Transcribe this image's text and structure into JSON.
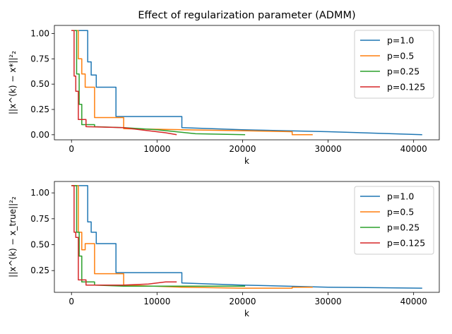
{
  "chart_data": [
    {
      "type": "line",
      "title": "Effect of regularization parameter (ADMM)",
      "xlabel": "k",
      "ylabel": "||x^(k) − x*||²₂",
      "xlim": [
        -2000,
        43000
      ],
      "ylim": [
        -0.05,
        1.08
      ],
      "xticks": [
        0,
        10000,
        20000,
        30000,
        40000
      ],
      "xtick_labels": [
        "0",
        "10000",
        "20000",
        "30000",
        "40000"
      ],
      "yticks": [
        0.0,
        0.25,
        0.5,
        0.75,
        1.0
      ],
      "ytick_labels": [
        "0.00",
        "0.25",
        "0.50",
        "0.75",
        "1.00"
      ],
      "legend_position": "top-right",
      "series": [
        {
          "name": "p=1.0",
          "color": "#1f77b4",
          "x": [
            0,
            1900,
            1900,
            2300,
            2300,
            2900,
            2900,
            5200,
            5200,
            12900,
            12900,
            20000,
            30000,
            41000
          ],
          "y": [
            1.03,
            1.03,
            0.72,
            0.72,
            0.59,
            0.59,
            0.47,
            0.47,
            0.18,
            0.18,
            0.07,
            0.05,
            0.03,
            0.0
          ]
        },
        {
          "name": "p=0.5",
          "color": "#ff7f0e",
          "x": [
            0,
            800,
            800,
            1200,
            1200,
            1600,
            1600,
            2700,
            2700,
            6100,
            6100,
            12900,
            20000,
            25800,
            25800,
            28200
          ],
          "y": [
            1.03,
            1.03,
            0.75,
            0.75,
            0.6,
            0.6,
            0.47,
            0.47,
            0.17,
            0.17,
            0.06,
            0.05,
            0.04,
            0.03,
            0.0,
            0.0
          ]
        },
        {
          "name": "p=0.25",
          "color": "#2ca02c",
          "x": [
            0,
            600,
            600,
            900,
            900,
            1200,
            1200,
            2700,
            2700,
            6100,
            10000,
            14500,
            20300
          ],
          "y": [
            1.03,
            1.03,
            0.6,
            0.6,
            0.3,
            0.3,
            0.1,
            0.1,
            0.08,
            0.07,
            0.05,
            0.01,
            0.0
          ]
        },
        {
          "name": "p=0.125",
          "color": "#d62728",
          "x": [
            0,
            300,
            300,
            500,
            500,
            800,
            800,
            1700,
            1700,
            6000,
            9000,
            11000,
            12300
          ],
          "y": [
            1.03,
            1.03,
            0.58,
            0.58,
            0.43,
            0.43,
            0.15,
            0.15,
            0.08,
            0.07,
            0.04,
            0.02,
            0.0
          ]
        }
      ]
    },
    {
      "type": "line",
      "title": "",
      "xlabel": "k",
      "ylabel": "||x^(k) − x_true||²₂",
      "xlim": [
        -2000,
        43000
      ],
      "ylim": [
        0.04,
        1.11
      ],
      "xticks": [
        0,
        10000,
        20000,
        30000,
        40000
      ],
      "xtick_labels": [
        "0",
        "10000",
        "20000",
        "30000",
        "40000"
      ],
      "yticks": [
        0.25,
        0.5,
        0.75,
        1.0
      ],
      "ytick_labels": [
        "0.25",
        "0.50",
        "0.75",
        "1.00"
      ],
      "legend_position": "top-right",
      "series": [
        {
          "name": "p=1.0",
          "color": "#1f77b4",
          "x": [
            0,
            1900,
            1900,
            2300,
            2300,
            2900,
            2900,
            5200,
            5200,
            12900,
            12900,
            20000,
            30000,
            41000
          ],
          "y": [
            1.07,
            1.07,
            0.72,
            0.72,
            0.62,
            0.62,
            0.51,
            0.51,
            0.23,
            0.23,
            0.13,
            0.11,
            0.09,
            0.08
          ]
        },
        {
          "name": "p=0.5",
          "color": "#ff7f0e",
          "x": [
            0,
            800,
            800,
            1200,
            1200,
            1600,
            1600,
            2700,
            2700,
            6100,
            6100,
            12900,
            20000,
            25800,
            25800,
            28200
          ],
          "y": [
            1.07,
            1.07,
            0.62,
            0.62,
            0.45,
            0.45,
            0.51,
            0.51,
            0.22,
            0.22,
            0.11,
            0.09,
            0.08,
            0.08,
            0.09,
            0.09
          ]
        },
        {
          "name": "p=0.25",
          "color": "#2ca02c",
          "x": [
            0,
            600,
            600,
            900,
            900,
            1200,
            1200,
            2700,
            2700,
            6100,
            10000,
            14500,
            20300
          ],
          "y": [
            1.07,
            1.07,
            0.62,
            0.62,
            0.39,
            0.39,
            0.14,
            0.14,
            0.11,
            0.1,
            0.1,
            0.1,
            0.1
          ]
        },
        {
          "name": "p=0.125",
          "color": "#d62728",
          "x": [
            0,
            300,
            300,
            500,
            500,
            800,
            800,
            1700,
            1700,
            6000,
            9000,
            11000,
            12300
          ],
          "y": [
            1.07,
            1.07,
            0.62,
            0.62,
            0.57,
            0.57,
            0.16,
            0.16,
            0.11,
            0.11,
            0.12,
            0.14,
            0.14
          ]
        }
      ]
    }
  ]
}
